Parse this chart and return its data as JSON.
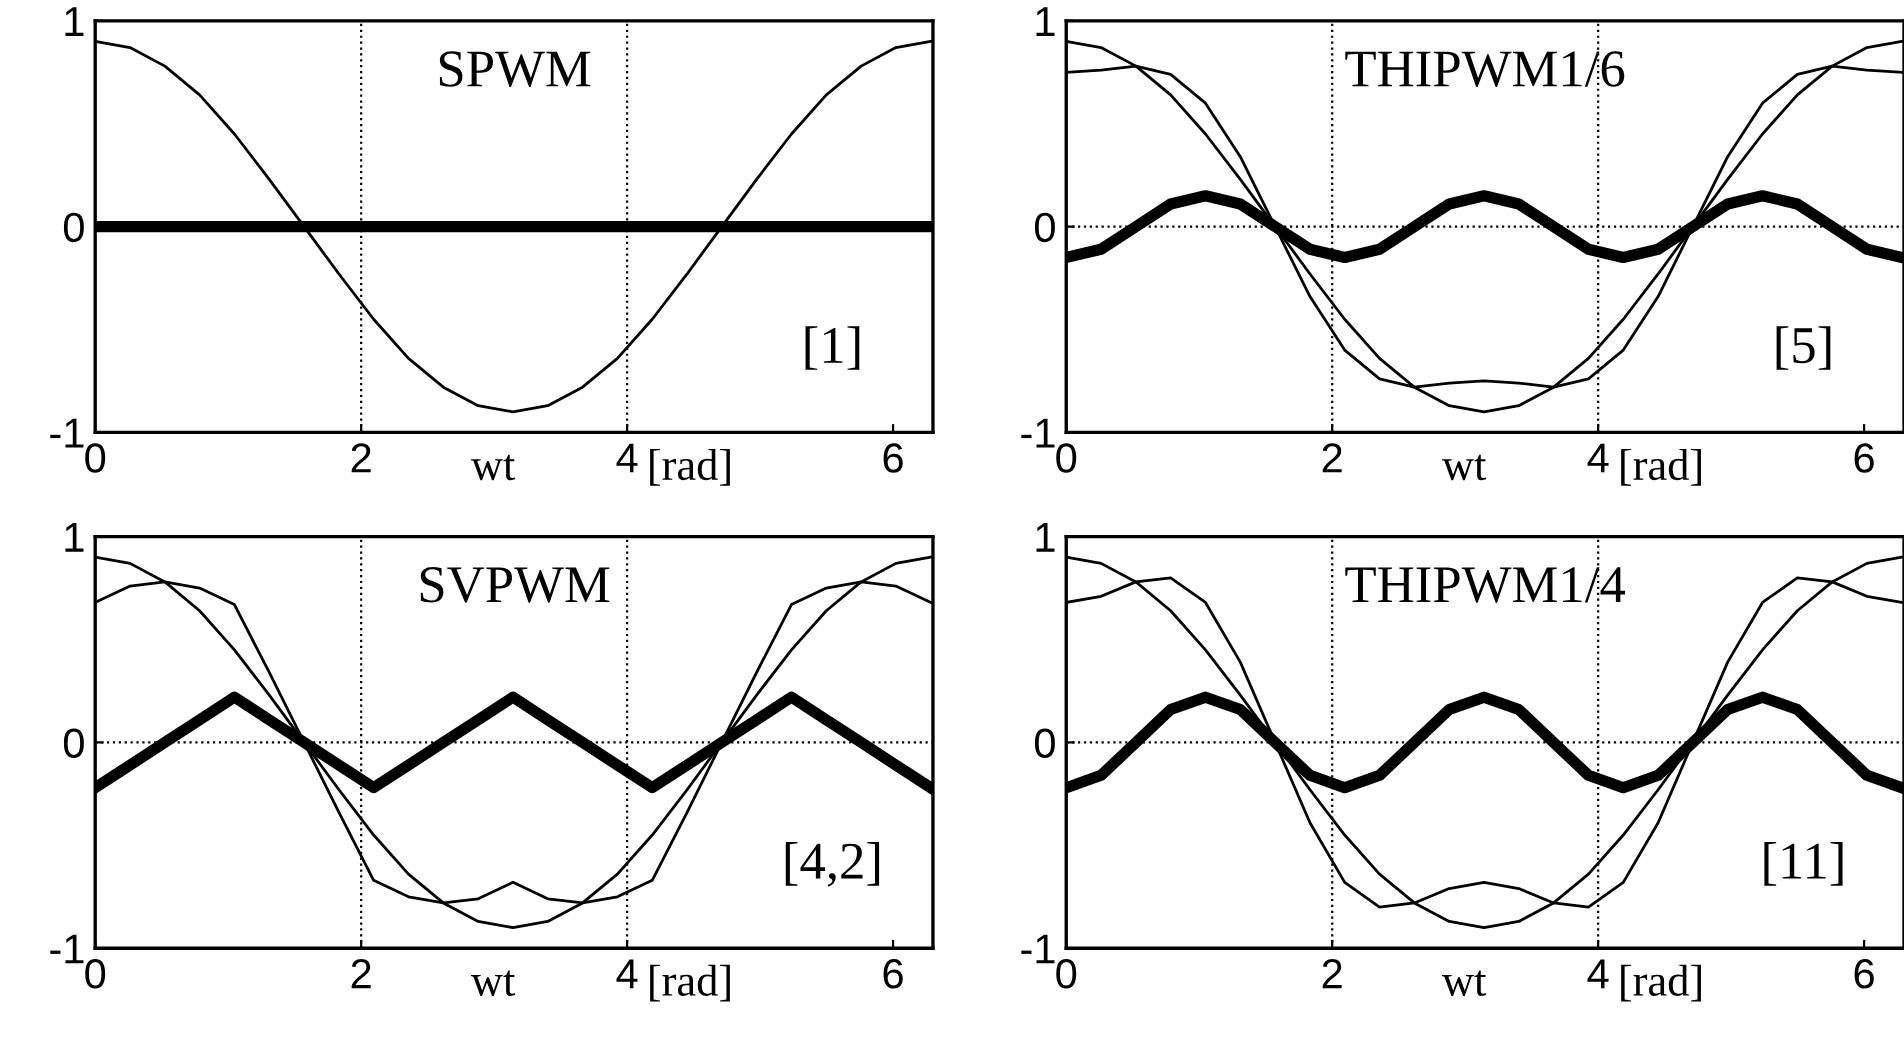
{
  "chart_data": [
    {
      "type": "line",
      "title": "SPWM",
      "annotations": [
        "[1]"
      ],
      "xlabel": "wt [rad]",
      "x": [
        0,
        0.262,
        0.524,
        0.785,
        1.047,
        1.309,
        1.571,
        1.833,
        2.094,
        2.356,
        2.618,
        2.88,
        3.142,
        3.403,
        3.665,
        3.927,
        4.189,
        4.451,
        4.712,
        4.974,
        5.236,
        5.498,
        5.76,
        6.021,
        6.283
      ],
      "series": [
        {
          "color": "#000000",
          "values": [
            0.9,
            0.87,
            0.78,
            0.64,
            0.45,
            0.23,
            0,
            -0.23,
            -0.45,
            -0.64,
            -0.78,
            -0.87,
            -0.9,
            -0.87,
            -0.78,
            -0.64,
            -0.45,
            -0.23,
            0,
            0.23,
            0.45,
            0.64,
            0.78,
            0.87,
            0.9
          ]
        },
        {
          "color": "#000000",
          "values": [
            0,
            0,
            0,
            0,
            0,
            0,
            0,
            0,
            0,
            0,
            0,
            0,
            0,
            0,
            0,
            0,
            0,
            0,
            0,
            0,
            0,
            0,
            0,
            0,
            0
          ]
        }
      ],
      "xlim": [
        0,
        6.3
      ],
      "ylim": [
        -1,
        1
      ],
      "xticks": [
        0,
        2,
        4,
        6
      ],
      "yticks": [
        -1,
        0,
        1
      ],
      "grid": false,
      "legend": false,
      "ref_lines": [
        {
          "axis": "x",
          "value": 2,
          "line_style": "dotted"
        },
        {
          "axis": "x",
          "value": 4,
          "line_style": "dotted"
        }
      ]
    },
    {
      "type": "line",
      "title": "THIPWM1/6",
      "annotations": [
        "[5]"
      ],
      "xlabel": "wt [rad]",
      "x": [
        0,
        0.262,
        0.524,
        0.785,
        1.047,
        1.309,
        1.571,
        1.833,
        2.094,
        2.356,
        2.618,
        2.88,
        3.142,
        3.403,
        3.665,
        3.927,
        4.189,
        4.451,
        4.712,
        4.974,
        5.236,
        5.498,
        5.76,
        6.021,
        6.283
      ],
      "series": [
        {
          "color": "#000000",
          "values": [
            0.9,
            0.87,
            0.78,
            0.64,
            0.45,
            0.23,
            0,
            -0.23,
            -0.45,
            -0.64,
            -0.78,
            -0.87,
            -0.9,
            -0.87,
            -0.78,
            -0.64,
            -0.45,
            -0.23,
            0,
            0.23,
            0.45,
            0.64,
            0.78,
            0.87,
            0.9
          ]
        },
        {
          "color": "#000000",
          "values": [
            0.75,
            0.76,
            0.78,
            0.74,
            0.6,
            0.34,
            0,
            -0.34,
            -0.6,
            -0.74,
            -0.78,
            -0.76,
            -0.75,
            -0.76,
            -0.78,
            -0.74,
            -0.6,
            -0.34,
            0,
            0.34,
            0.6,
            0.74,
            0.78,
            0.76,
            0.75
          ]
        },
        {
          "color": "#000000",
          "values": [
            -0.15,
            -0.11,
            0,
            0.11,
            0.15,
            0.11,
            0,
            -0.11,
            -0.15,
            -0.11,
            0,
            0.11,
            0.15,
            0.11,
            0,
            -0.11,
            -0.15,
            -0.11,
            0,
            0.11,
            0.15,
            0.11,
            0,
            -0.11,
            -0.15
          ]
        }
      ],
      "xlim": [
        0,
        6.3
      ],
      "ylim": [
        -1,
        1
      ],
      "xticks": [
        0,
        2,
        4,
        6
      ],
      "yticks": [
        -1,
        0,
        1
      ],
      "grid": false,
      "legend": false,
      "ref_lines": [
        {
          "axis": "x",
          "value": 2,
          "line_style": "dotted"
        },
        {
          "axis": "x",
          "value": 4,
          "line_style": "dotted"
        },
        {
          "axis": "y",
          "value": 0,
          "line_style": "dotted"
        }
      ]
    },
    {
      "type": "line",
      "title": "SVPWM",
      "annotations": [
        "[4,2]"
      ],
      "xlabel": "wt [rad]",
      "x": [
        0,
        0.262,
        0.524,
        0.785,
        1.047,
        1.309,
        1.571,
        1.833,
        2.094,
        2.356,
        2.618,
        2.88,
        3.142,
        3.403,
        3.665,
        3.927,
        4.189,
        4.451,
        4.712,
        4.974,
        5.236,
        5.498,
        5.76,
        6.021,
        6.283
      ],
      "series": [
        {
          "color": "#000000",
          "values": [
            0.9,
            0.87,
            0.78,
            0.64,
            0.45,
            0.23,
            0,
            -0.23,
            -0.45,
            -0.64,
            -0.78,
            -0.87,
            -0.9,
            -0.87,
            -0.78,
            -0.64,
            -0.45,
            -0.23,
            0,
            0.23,
            0.45,
            0.64,
            0.78,
            0.87,
            0.9
          ]
        },
        {
          "color": "#000000",
          "values": [
            0.68,
            0.76,
            0.78,
            0.75,
            0.67,
            0.34,
            0,
            -0.34,
            -0.67,
            -0.75,
            -0.78,
            -0.76,
            -0.68,
            -0.76,
            -0.78,
            -0.75,
            -0.67,
            -0.34,
            0,
            0.34,
            0.67,
            0.75,
            0.78,
            0.76,
            0.68
          ]
        },
        {
          "color": "#000000",
          "values": [
            -0.22,
            -0.11,
            0,
            0.11,
            0.22,
            0.11,
            0,
            -0.11,
            -0.22,
            -0.11,
            0,
            0.11,
            0.22,
            0.11,
            0,
            -0.11,
            -0.22,
            -0.11,
            0,
            0.11,
            0.22,
            0.11,
            0,
            -0.11,
            -0.22
          ]
        }
      ],
      "xlim": [
        0,
        6.3
      ],
      "ylim": [
        -1,
        1
      ],
      "xticks": [
        0,
        2,
        4,
        6
      ],
      "yticks": [
        -1,
        0,
        1
      ],
      "grid": false,
      "legend": false,
      "ref_lines": [
        {
          "axis": "x",
          "value": 2,
          "line_style": "dotted"
        },
        {
          "axis": "x",
          "value": 4,
          "line_style": "dotted"
        },
        {
          "axis": "y",
          "value": 0,
          "line_style": "dotted"
        }
      ]
    },
    {
      "type": "line",
      "title": "THIPWM1/4",
      "annotations": [
        "[11]"
      ],
      "xlabel": "wt [rad]",
      "x": [
        0,
        0.262,
        0.524,
        0.785,
        1.047,
        1.309,
        1.571,
        1.833,
        2.094,
        2.356,
        2.618,
        2.88,
        3.142,
        3.403,
        3.665,
        3.927,
        4.189,
        4.451,
        4.712,
        4.974,
        5.236,
        5.498,
        5.76,
        6.021,
        6.283
      ],
      "series": [
        {
          "color": "#000000",
          "values": [
            0.9,
            0.87,
            0.78,
            0.64,
            0.45,
            0.23,
            0,
            -0.23,
            -0.45,
            -0.64,
            -0.78,
            -0.87,
            -0.9,
            -0.87,
            -0.78,
            -0.64,
            -0.45,
            -0.23,
            0,
            0.23,
            0.45,
            0.64,
            0.78,
            0.87,
            0.9
          ]
        },
        {
          "color": "#000000",
          "values": [
            0.68,
            0.71,
            0.78,
            0.8,
            0.68,
            0.39,
            0,
            -0.39,
            -0.68,
            -0.8,
            -0.78,
            -0.71,
            -0.68,
            -0.71,
            -0.78,
            -0.8,
            -0.68,
            -0.39,
            0,
            0.39,
            0.68,
            0.8,
            0.78,
            0.71,
            0.68
          ]
        },
        {
          "color": "#000000",
          "values": [
            -0.22,
            -0.16,
            0,
            0.16,
            0.22,
            0.16,
            0,
            -0.16,
            -0.22,
            -0.16,
            0,
            0.16,
            0.22,
            0.16,
            0,
            -0.16,
            -0.22,
            -0.16,
            0,
            0.16,
            0.22,
            0.16,
            0,
            -0.16,
            -0.22
          ]
        }
      ],
      "xlim": [
        0,
        6.3
      ],
      "ylim": [
        -1,
        1
      ],
      "xticks": [
        0,
        2,
        4,
        6
      ],
      "yticks": [
        -1,
        0,
        1
      ],
      "grid": false,
      "legend": false,
      "ref_lines": [
        {
          "axis": "x",
          "value": 2,
          "line_style": "dotted"
        },
        {
          "axis": "x",
          "value": 4,
          "line_style": "dotted"
        },
        {
          "axis": "y",
          "value": 0,
          "line_style": "dotted"
        }
      ]
    }
  ]
}
